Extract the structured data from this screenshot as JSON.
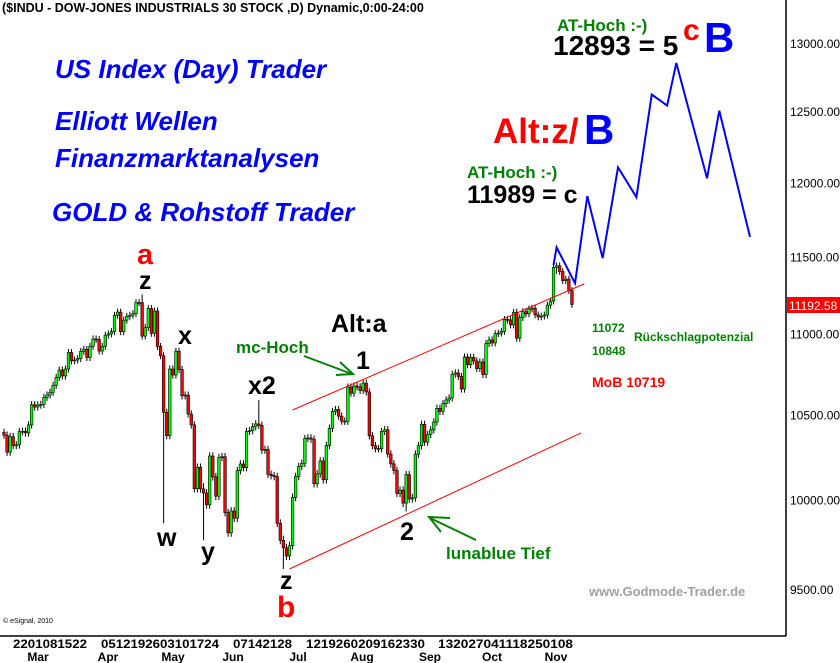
{
  "header": {
    "title": "($INDU - DOW-JONES INDUSTRIALS 30 STOCK ,D) Dynamic,0:00-24:00"
  },
  "promo": {
    "line1": "US Index (Day) Trader",
    "line2": "Elliott Wellen",
    "line3": "Finanzmarktanalysen",
    "line4": "GOLD & Rohstoff Trader"
  },
  "annotations": {
    "a": "a",
    "z_top": "z",
    "x": "x",
    "w": "w",
    "y": "y",
    "x2": "x2",
    "z_low": "z",
    "b": "b",
    "mc_hoch": "mc-Hoch",
    "alt_a": "Alt:a",
    "one": "1",
    "two": "2",
    "lunablue": "lunablue Tief",
    "alt_z": "Alt:z/",
    "alt_B": "B",
    "at_hoch_1": "AT-Hoch :-)",
    "level_c": "11989 = c",
    "at_hoch_2": "AT-Hoch :-)",
    "level_5": "12893 = 5",
    "c_red": "c",
    "B_big": "B",
    "r1": "11072",
    "r2": "10848",
    "rueck": "Rückschlagpotenzial",
    "mob": "MoB 10719",
    "watermark": "www.Godmode-Trader.de",
    "copyright": "© eSignal, 2010"
  },
  "colors": {
    "up": "#00ff00",
    "down": "#ff0000",
    "projection": "#0000ff",
    "channel": "#ff0000",
    "promo": "#0000ff",
    "label_green": "#008000",
    "price_box": "#ff0000"
  },
  "chart_data": {
    "type": "candlestick",
    "title": "($INDU - DOW-JONES INDUSTRIALS 30 STOCK ,D) Dynamic,0:00-24:00",
    "y_scale": "log",
    "ylim": [
      9450,
      13400
    ],
    "y_ticks": [
      "13000.00",
      "12500.00",
      "12000.00",
      "11500.00",
      "11000.00",
      "10500.00",
      "10000.00",
      "9500.00"
    ],
    "last_price": "11192.58",
    "x_tick_groups": [
      "2201081522",
      "0512192603101724",
      "07142128",
      "1219260209162330",
      "132027041118250108"
    ],
    "months": [
      "Mar",
      "Apr",
      "May",
      "Jun",
      "Jul",
      "Aug",
      "Sep",
      "Oct",
      "Nov"
    ],
    "first_open": 10400,
    "closes": [
      10383,
      10282,
      10374,
      10321,
      10325,
      10404,
      10406,
      10396,
      10444,
      10566,
      10552,
      10564,
      10568,
      10611,
      10625,
      10642,
      10685,
      10733,
      10779,
      10742,
      10785,
      10888,
      10836,
      10841,
      10850,
      10895,
      10907,
      10857,
      10927,
      10973,
      10969,
      10897,
      10927,
      10997,
      11005,
      11019,
      11123,
      11144,
      11019,
      11092,
      11117,
      11124,
      11134,
      11204,
      11205,
      10991,
      11045,
      11167,
      11009,
      11151,
      10926,
      10868,
      10520,
      10380,
      10785,
      10748,
      10896,
      10782,
      10620,
      10625,
      10510,
      10444,
      10068,
      10193,
      10067,
      10043,
      9975,
      10259,
      10137,
      10025,
      10250,
      10255,
      9931,
      9816,
      9940,
      9899,
      10173,
      10212,
      10191,
      10405,
      10410,
      10434,
      10450,
      10442,
      10294,
      10298,
      10152,
      10144,
      10139,
      9870,
      9774,
      9732,
      9686,
      9744,
      10018,
      10139,
      10198,
      10216,
      10363,
      10366,
      10359,
      10097,
      10154,
      10230,
      10120,
      10322,
      10424,
      10525,
      10537,
      10497,
      10467,
      10466,
      10674,
      10636,
      10680,
      10675,
      10653,
      10698,
      10644,
      10379,
      10320,
      10303,
      10302,
      10405,
      10415,
      10271,
      10213,
      10174,
      10041,
      10060,
      9985,
      10150,
      10009,
      10015,
      10270,
      10320,
      10448,
      10341,
      10387,
      10415,
      10462,
      10544,
      10526,
      10572,
      10595,
      10607,
      10753,
      10761,
      10739,
      10662,
      10860,
      10812,
      10858,
      10835,
      10788,
      10829,
      10751,
      10944,
      10967,
      10948,
      11006,
      11010,
      11021,
      11097,
      11094,
      11062,
      11143,
      10978,
      11108,
      11146,
      11132,
      11164,
      11169,
      11126,
      11113,
      11118,
      11125,
      11188,
      11215,
      11434,
      11444,
      11407,
      11347,
      11357,
      11283,
      11192.58
    ],
    "extreme_wicks": {
      "45": [
        11258,
        11180
      ],
      "52": [
        10880,
        9870
      ],
      "65": [
        10100,
        9774
      ],
      "83": [
        10594,
        10420
      ],
      "91": [
        9800,
        9614
      ],
      "117": [
        10720,
        10650
      ],
      "131": [
        10160,
        9937
      ],
      "180": [
        11451,
        11390
      ]
    },
    "projection": [
      [
        179,
        11449
      ],
      [
        180,
        11566
      ],
      [
        186,
        11330
      ],
      [
        190,
        11912
      ],
      [
        195,
        11495
      ],
      [
        200,
        12110
      ],
      [
        206,
        11905
      ],
      [
        211,
        12628
      ],
      [
        216,
        12548
      ],
      [
        219,
        12859
      ],
      [
        229,
        12035
      ],
      [
        233,
        12511
      ],
      [
        243,
        11636
      ]
    ],
    "channel_upper": [
      [
        94,
        10534
      ],
      [
        189,
        11326
      ]
    ],
    "channel_lower": [
      [
        93,
        9614
      ],
      [
        188,
        10396
      ]
    ]
  }
}
